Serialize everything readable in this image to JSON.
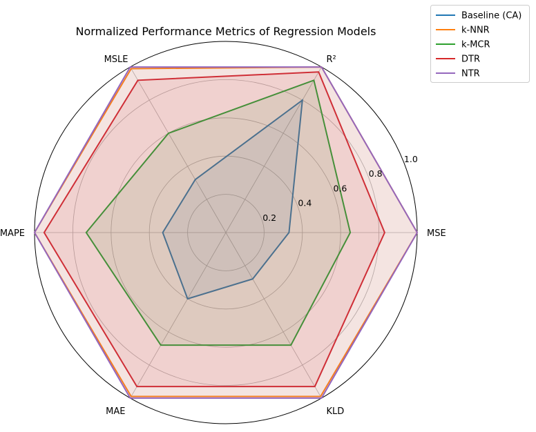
{
  "chart_data": {
    "type": "radar",
    "title": "Normalized Performance Metrics of Regression Models",
    "axes": [
      "MSE",
      "R²",
      "MSLE",
      "MAPE",
      "MAE",
      "KLD"
    ],
    "rlim": [
      0,
      1.0
    ],
    "r_ticks": [
      0.2,
      0.4,
      0.6,
      0.8,
      1.0
    ],
    "r_tick_labels": [
      "0.2",
      "0.4",
      "0.6",
      "0.8",
      "1.0"
    ],
    "grid": true,
    "legend_position": "top-right, outside",
    "series": [
      {
        "name": "Baseline (CA)",
        "color": "#1f77b4",
        "values": [
          0.33,
          0.8,
          0.32,
          0.33,
          0.4,
          0.28
        ],
        "filled": true
      },
      {
        "name": "k-NNR",
        "color": "#ff7f0e",
        "values": [
          1.0,
          1.0,
          0.99,
          1.0,
          0.99,
          0.99
        ],
        "filled": true
      },
      {
        "name": "k-MCR",
        "color": "#2ca02c",
        "values": [
          0.65,
          0.92,
          0.6,
          0.73,
          0.68,
          0.68
        ],
        "filled": true
      },
      {
        "name": "DTR",
        "color": "#d62728",
        "values": [
          0.83,
          0.97,
          0.92,
          0.95,
          0.93,
          0.93
        ],
        "filled": true
      },
      {
        "name": "NTR",
        "color": "#9467bd",
        "values": [
          1.0,
          1.0,
          1.0,
          1.0,
          1.0,
          1.0
        ],
        "filled": true
      }
    ]
  }
}
